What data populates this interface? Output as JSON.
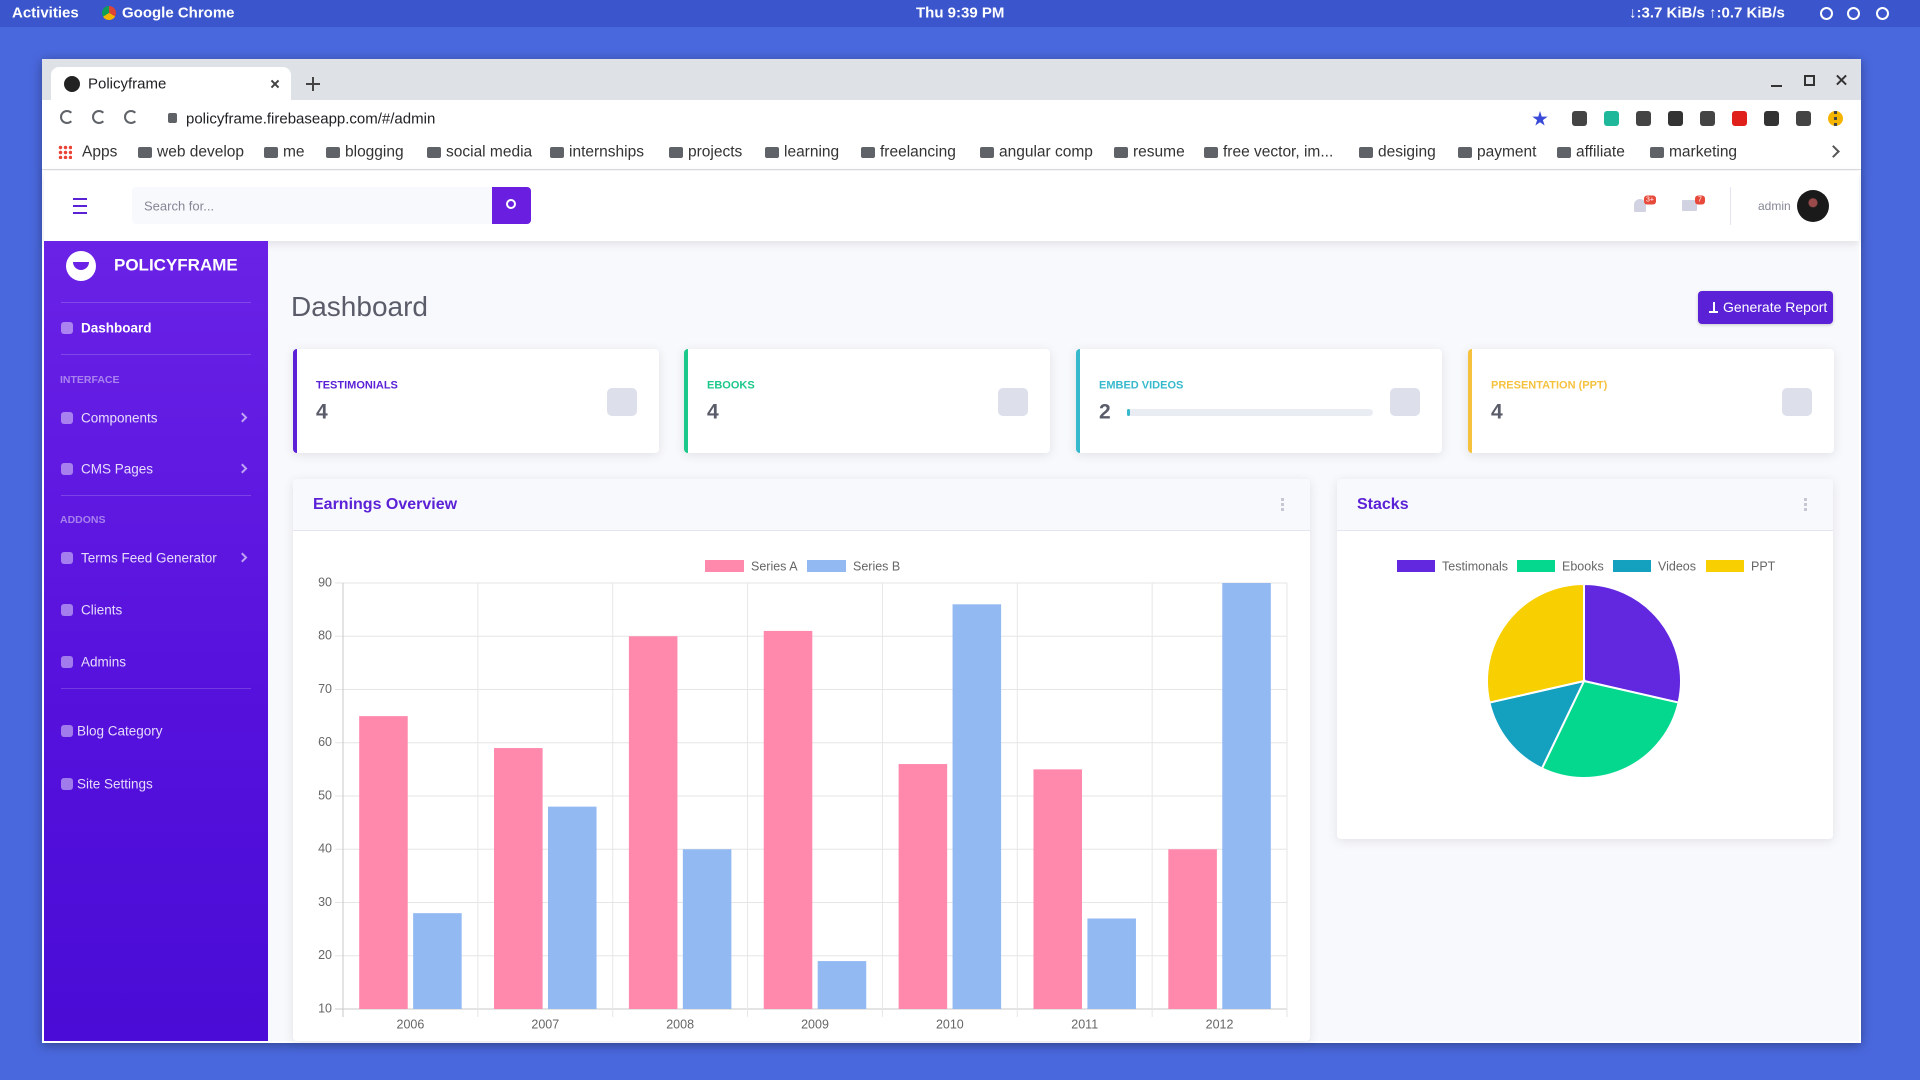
{
  "system_bar": {
    "activities": "Activities",
    "app": "Google Chrome",
    "clock": "Thu  9:39 PM",
    "network": "↓:3.7 KiB/s ↑:0.7 KiB/s"
  },
  "browser": {
    "tab_title": "Policyframe",
    "url": "policyframe.firebaseapp.com/#/admin",
    "bookmarks": [
      "Apps",
      "web develop",
      "me",
      "blogging",
      "social media",
      "internships",
      "projects",
      "learning",
      "freelancing",
      "angular comp",
      "resume",
      "free vector, im...",
      "desiging",
      "payment",
      "affiliate",
      "marketing"
    ]
  },
  "header": {
    "search_placeholder": "Search for...",
    "notifications": "3+",
    "messages": "7",
    "user": "admin"
  },
  "sidebar": {
    "brand": "POLICYFRAME",
    "dashboard": "Dashboard",
    "interface_heading": "INTERFACE",
    "interface_items": [
      "Components",
      "CMS Pages"
    ],
    "addons_heading": "ADDONS",
    "addons_items": [
      "Terms Feed Generator",
      "Clients",
      "Admins"
    ],
    "other_items": [
      "Blog Category",
      "Site Settings"
    ]
  },
  "page": {
    "title": "Dashboard",
    "button": "Generate Report"
  },
  "cards": [
    {
      "label": "TESTIMONIALS",
      "value": 4,
      "color": "#5b21d6"
    },
    {
      "label": "EBOOKS",
      "value": 4,
      "color": "#1cc88a"
    },
    {
      "label": "EMBED VIDEOS",
      "value": 2,
      "color": "#36b9cc"
    },
    {
      "label": "PRESENTATION (PPT)",
      "value": 4,
      "color": "#f6c23e"
    }
  ],
  "chart_data": [
    {
      "type": "bar",
      "title": "Earnings Overview",
      "categories": [
        "2006",
        "2007",
        "2008",
        "2009",
        "2010",
        "2011",
        "2012"
      ],
      "series": [
        {
          "name": "Series A",
          "color": "#ff88ad",
          "values": [
            65,
            59,
            80,
            81,
            56,
            55,
            40
          ]
        },
        {
          "name": "Series B",
          "color": "#93b9f3",
          "values": [
            28,
            48,
            40,
            19,
            86,
            27,
            90
          ]
        }
      ],
      "ylim": [
        10,
        90
      ],
      "yticks": [
        10,
        20,
        30,
        40,
        50,
        60,
        70,
        80,
        90
      ],
      "grid": true
    },
    {
      "type": "pie",
      "title": "Stacks",
      "categories": [
        "Testimonals",
        "Ebooks",
        "Videos",
        "PPT"
      ],
      "values": [
        4,
        4,
        2,
        4
      ],
      "colors": [
        "#6228e0",
        "#04d88f",
        "#14a0bf",
        "#f8cf00"
      ]
    }
  ]
}
